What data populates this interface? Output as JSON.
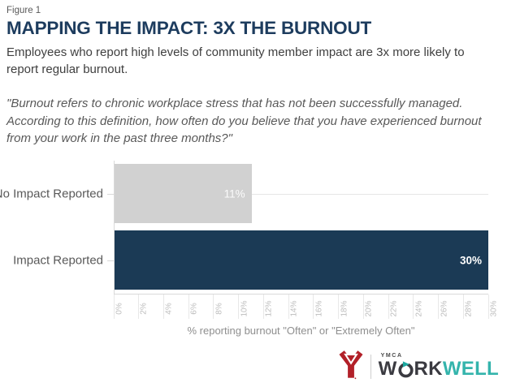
{
  "header": {
    "figure_label": "Figure 1",
    "title": "MAPPING THE IMPACT: 3X THE BURNOUT",
    "subtitle": "Employees who report high levels of community member impact are 3x more likely to report regular burnout.",
    "quote": "\"Burnout refers to chronic workplace stress that has not been successfully managed. According to this definition, how often do you believe that you have experienced burnout from your work in the past three months?\""
  },
  "chart_data": {
    "type": "bar",
    "orientation": "horizontal",
    "categories": [
      "No Impact Reported",
      "Impact Reported"
    ],
    "values": [
      11,
      30
    ],
    "value_labels": [
      "11%",
      "30%"
    ],
    "bar_colors": [
      "#d1d1d1",
      "#1b3a55"
    ],
    "xlabel": "% reporting burnout \"Often\" or \"Extremely Often\"",
    "xlim": [
      0,
      30
    ],
    "x_tick_step": 2,
    "x_tick_labels": [
      "0%",
      "2%",
      "4%",
      "6%",
      "8%",
      "10%",
      "12%",
      "14%",
      "16%",
      "18%",
      "20%",
      "22%",
      "24%",
      "26%",
      "28%",
      "30%"
    ],
    "grid": "category center gridlines only",
    "legend": "none",
    "title": "MAPPING THE IMPACT: 3X THE BURNOUT"
  },
  "logo": {
    "ymca_small_text": "YMCA",
    "word_part_1": "W",
    "word_part_2": "RK",
    "word_part_teal": "WELL",
    "colors": {
      "y_red": "#b22028",
      "dark": "#3a3a40",
      "teal": "#34b4ac"
    }
  }
}
